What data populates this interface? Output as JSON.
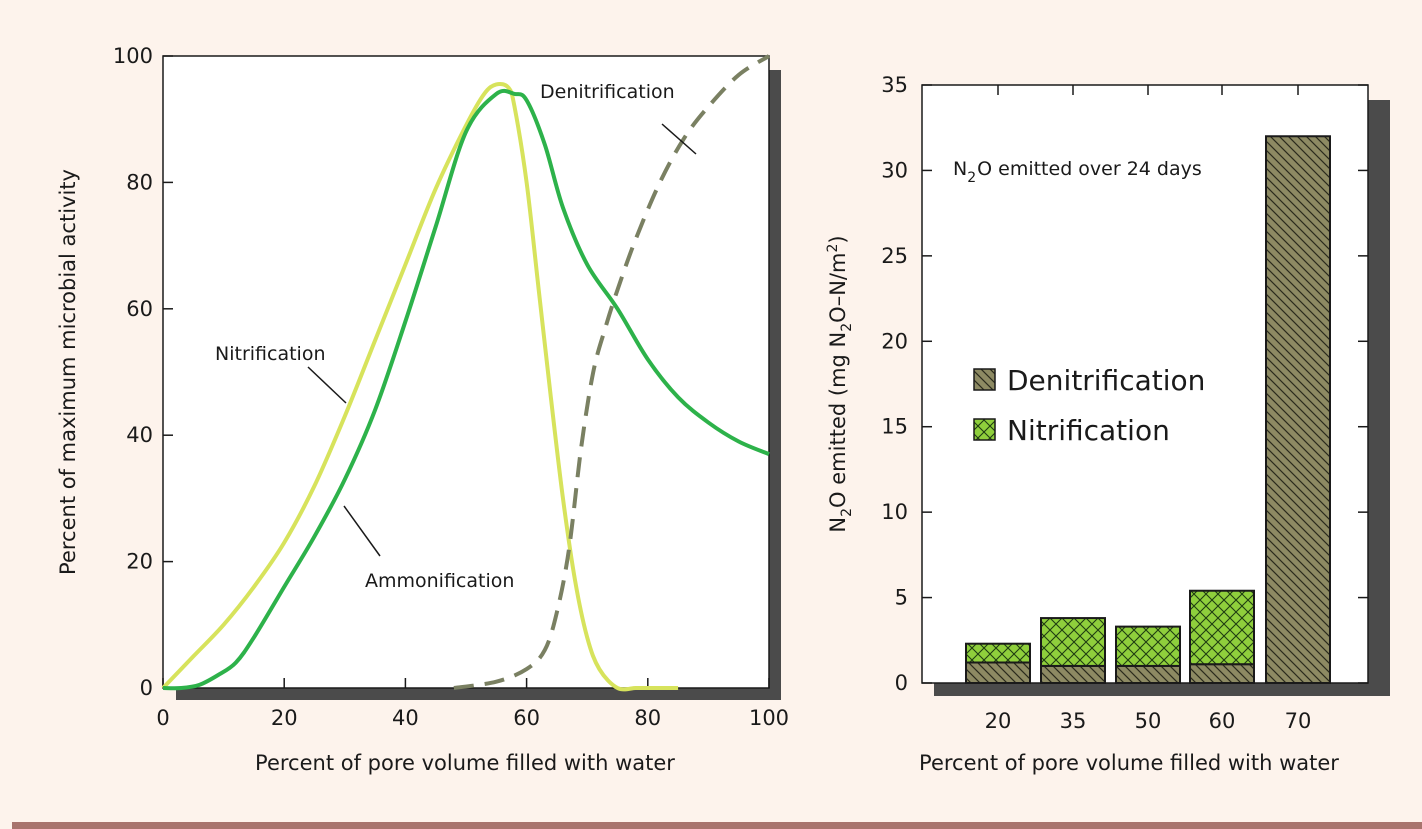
{
  "chart_data": [
    {
      "type": "line",
      "xlabel": "Percent of pore volume filled with water",
      "ylabel": "Percent of maximum microbial activity",
      "xlim": [
        0,
        100
      ],
      "ylim": [
        0,
        100
      ],
      "xticks": [
        0,
        20,
        40,
        60,
        80,
        100
      ],
      "yticks": [
        0,
        20,
        40,
        60,
        80,
        100
      ],
      "grid": false,
      "series": [
        {
          "name": "Nitrification",
          "color": "#d7e35c",
          "style": "solid",
          "x": [
            0,
            5,
            10,
            15,
            20,
            25,
            30,
            35,
            40,
            45,
            50,
            53,
            55,
            57,
            58,
            60,
            62,
            64,
            66,
            68,
            70,
            72,
            75,
            78,
            80,
            83,
            85
          ],
          "y": [
            0,
            5,
            10,
            16,
            23,
            32,
            43,
            55,
            67,
            79,
            89,
            94,
            95.5,
            95,
            92,
            80,
            63,
            46,
            30,
            17,
            8,
            3,
            0,
            0,
            0,
            0,
            0
          ]
        },
        {
          "name": "Ammonification",
          "color": "#2db24a",
          "style": "solid",
          "x": [
            0,
            3,
            6,
            9,
            12,
            15,
            20,
            25,
            30,
            35,
            40,
            45,
            50,
            55,
            58,
            60,
            63,
            66,
            70,
            75,
            80,
            85,
            90,
            95,
            100
          ],
          "y": [
            0,
            0,
            0.5,
            2,
            4,
            8,
            16,
            24,
            33,
            44,
            58,
            73,
            88,
            94,
            94,
            93,
            86,
            76,
            67,
            60,
            52,
            46,
            42,
            39,
            37
          ]
        },
        {
          "name": "Denitrification",
          "color": "#7a8062",
          "style": "dashed",
          "x": [
            48,
            55,
            60,
            63,
            65,
            67,
            69,
            71,
            73,
            75,
            78,
            82,
            86,
            90,
            95,
            100
          ],
          "y": [
            0,
            1,
            3,
            6,
            12,
            22,
            38,
            50,
            57,
            63,
            71,
            80,
            87,
            92,
            97,
            100
          ]
        }
      ],
      "annotations": [
        "Nitrification",
        "Ammonification",
        "Denitrification"
      ]
    },
    {
      "type": "bar",
      "stacked": true,
      "xlabel": "Percent of pore volume filled with water",
      "ylabel_parts": [
        "N",
        "2",
        "O emitted (mg N",
        "2",
        "O–N/m",
        "2",
        ")"
      ],
      "title_parts": [
        "N",
        "2",
        "O emitted over 24 days"
      ],
      "categories": [
        "20",
        "35",
        "50",
        "60",
        "70"
      ],
      "ylim": [
        0,
        35
      ],
      "yticks": [
        0,
        5,
        10,
        15,
        20,
        25,
        30,
        35
      ],
      "grid": false,
      "legend_position": "center-left",
      "series": [
        {
          "name": "Denitrification",
          "color": "#8d8a63",
          "pattern": "diagonal-hatch",
          "values": [
            1.2,
            1.0,
            1.0,
            1.1,
            32
          ]
        },
        {
          "name": "Nitrification",
          "color": "#8fcf3c",
          "pattern": "cross-hatch",
          "values": [
            1.1,
            2.8,
            2.3,
            4.3,
            0
          ]
        }
      ]
    }
  ]
}
